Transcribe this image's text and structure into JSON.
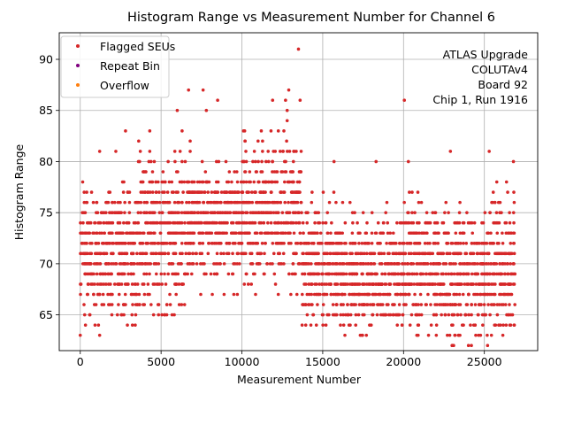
{
  "chart_data": {
    "type": "scatter",
    "title": "Histogram Range vs Measurement Number for Channel 6",
    "xlabel": "Measurement Number",
    "ylabel": "Histogram Range",
    "xlim": [
      -1300,
      28300
    ],
    "ylim": [
      61.5,
      92.6
    ],
    "x_ticks": [
      0,
      5000,
      10000,
      15000,
      20000,
      25000
    ],
    "y_ticks": [
      65,
      70,
      75,
      80,
      85,
      90
    ],
    "grid": true,
    "legend_position": "upper-left",
    "series": [
      {
        "name": "Flagged SEUs",
        "color": "#d62728",
        "marker": "circle"
      },
      {
        "name": "Repeat Bin",
        "color": "#800080",
        "marker": "circle"
      },
      {
        "name": "Overflow",
        "color": "#ff7f0e",
        "marker": "circle"
      }
    ],
    "x_range": [
      0,
      26900
    ],
    "y_range": [
      62,
      91
    ],
    "scatter_bands": [
      {
        "x": [
          0,
          3500
        ],
        "ymin": 63,
        "ymax": 78,
        "center": 71
      },
      {
        "x": [
          3500,
          6500
        ],
        "ymin": 65,
        "ymax": 83,
        "center": 73
      },
      {
        "x": [
          6500,
          10000
        ],
        "ymin": 67,
        "ymax": 80,
        "center": 74
      },
      {
        "x": [
          10000,
          13700
        ],
        "ymin": 67,
        "ymax": 83,
        "center": 75
      },
      {
        "x": [
          13700,
          16000
        ],
        "ymin": 64,
        "ymax": 78,
        "center": 70
      },
      {
        "x": [
          16000,
          20000
        ],
        "ymin": 63,
        "ymax": 76,
        "center": 69
      },
      {
        "x": [
          20000,
          22000
        ],
        "ymin": 63,
        "ymax": 78,
        "center": 70
      },
      {
        "x": [
          22000,
          25000
        ],
        "ymin": 62,
        "ymax": 77,
        "center": 69
      },
      {
        "x": [
          25000,
          26900
        ],
        "ymin": 62,
        "ymax": 78,
        "center": 70
      }
    ],
    "outliers": [
      [
        700,
        77
      ],
      [
        1200,
        81
      ],
      [
        2200,
        81
      ],
      [
        2800,
        83
      ],
      [
        3600,
        80
      ],
      [
        4300,
        83
      ],
      [
        4300,
        81
      ],
      [
        6000,
        85
      ],
      [
        6300,
        83
      ],
      [
        6700,
        87
      ],
      [
        6800,
        82
      ],
      [
        6800,
        81
      ],
      [
        7600,
        87
      ],
      [
        7800,
        85
      ],
      [
        8500,
        86
      ],
      [
        10100,
        83
      ],
      [
        11000,
        82
      ],
      [
        11200,
        83
      ],
      [
        11800,
        83
      ],
      [
        11900,
        86
      ],
      [
        12700,
        86
      ],
      [
        12800,
        84
      ],
      [
        12900,
        87
      ],
      [
        12800,
        85
      ],
      [
        13500,
        91
      ],
      [
        13600,
        86
      ],
      [
        15700,
        80
      ],
      [
        18300,
        80
      ],
      [
        20050,
        86
      ],
      [
        20300,
        80
      ],
      [
        22900,
        81
      ],
      [
        25300,
        81
      ],
      [
        26800,
        80
      ],
      [
        23100,
        62
      ],
      [
        24200,
        62
      ],
      [
        25200,
        62
      ],
      [
        1200,
        63
      ],
      [
        0,
        63
      ],
      [
        3200,
        65
      ],
      [
        9500,
        67
      ]
    ],
    "annotation": [
      "ATLAS Upgrade",
      "COLUTAv4",
      "Board 92",
      "Chip 1, Run 1916"
    ]
  }
}
